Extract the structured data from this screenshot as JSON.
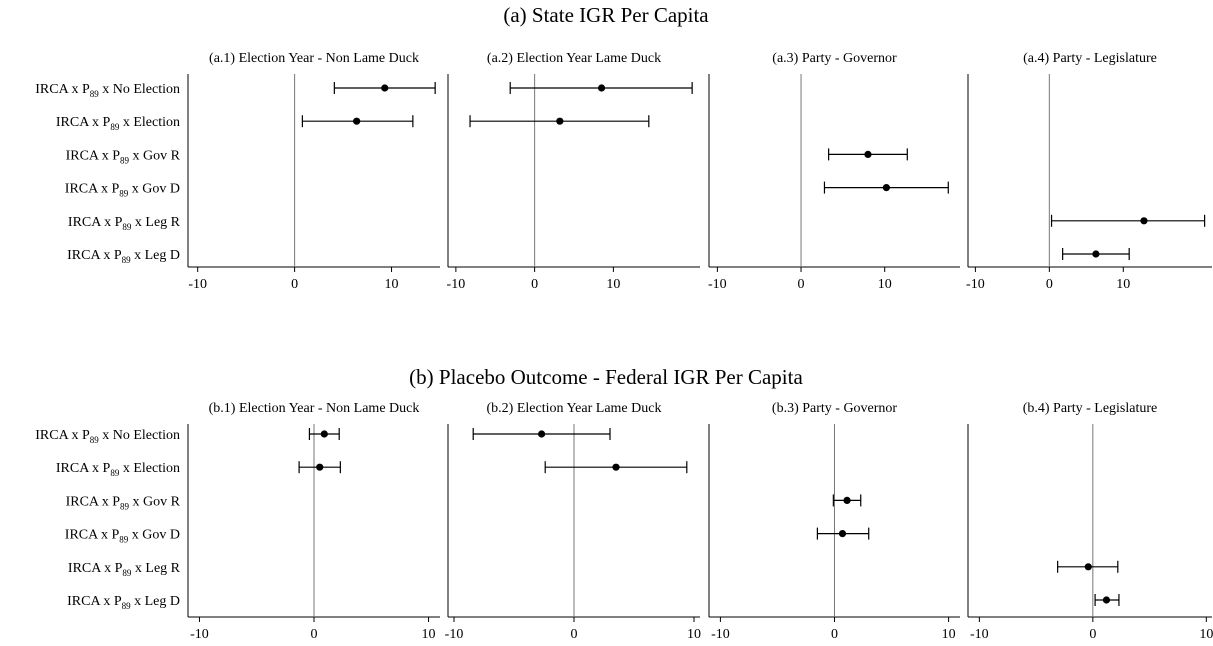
{
  "rows": [
    {
      "title": "(a) State IGR Per Capita",
      "ylabels": [
        {
          "pre": "IRCA x P",
          "sub": "89",
          "post": " x No Election"
        },
        {
          "pre": "IRCA x P",
          "sub": "89",
          "post": " x Election"
        },
        {
          "pre": "IRCA x P",
          "sub": "89",
          "post": " x Gov R"
        },
        {
          "pre": "IRCA x P",
          "sub": "89",
          "post": " x Gov D"
        },
        {
          "pre": "IRCA x P",
          "sub": "89",
          "post": " x Leg R"
        },
        {
          "pre": "IRCA x P",
          "sub": "89",
          "post": " x Leg D"
        }
      ]
    },
    {
      "title": "(b) Placebo Outcome - Federal IGR Per Capita",
      "ylabels": [
        {
          "pre": "IRCA x P",
          "sub": "89",
          "post": " x No Election"
        },
        {
          "pre": "IRCA x P",
          "sub": "89",
          "post": " x Election"
        },
        {
          "pre": "IRCA x P",
          "sub": "89",
          "post": " x Gov R"
        },
        {
          "pre": "IRCA x P",
          "sub": "89",
          "post": " x Gov D"
        },
        {
          "pre": "IRCA x P",
          "sub": "89",
          "post": " x Leg R"
        },
        {
          "pre": "IRCA x P",
          "sub": "89",
          "post": " x Leg D"
        }
      ]
    }
  ],
  "chart_data": [
    {
      "type": "scatter",
      "title": "(a.1) Election Year - Non Lame Duck",
      "row": 0,
      "xlim": [
        -11,
        15
      ],
      "xticks": [
        -10,
        0,
        10
      ],
      "refline": 0,
      "points": [
        {
          "row_index": 0,
          "estimate": 9.3,
          "ci_low": 4.1,
          "ci_high": 14.5
        },
        {
          "row_index": 1,
          "estimate": 6.4,
          "ci_low": 0.8,
          "ci_high": 12.2
        }
      ]
    },
    {
      "type": "scatter",
      "title": "(a.2) Election Year Lame Duck",
      "row": 0,
      "xlim": [
        -11,
        21
      ],
      "xticks": [
        -10,
        0,
        10
      ],
      "refline": 0,
      "points": [
        {
          "row_index": 0,
          "estimate": 8.5,
          "ci_low": -3.1,
          "ci_high": 20.0
        },
        {
          "row_index": 1,
          "estimate": 3.2,
          "ci_low": -8.2,
          "ci_high": 14.5
        }
      ]
    },
    {
      "type": "scatter",
      "title": "(a.3) Party - Governor",
      "row": 0,
      "xlim": [
        -11,
        19
      ],
      "xticks": [
        -10,
        0,
        10
      ],
      "refline": 0,
      "points": [
        {
          "row_index": 2,
          "estimate": 8.0,
          "ci_low": 3.3,
          "ci_high": 12.7
        },
        {
          "row_index": 3,
          "estimate": 10.2,
          "ci_low": 2.8,
          "ci_high": 17.6
        }
      ]
    },
    {
      "type": "scatter",
      "title": "(a.4) Party - Legislature",
      "row": 0,
      "xlim": [
        -11,
        22
      ],
      "xticks": [
        -10,
        0,
        10
      ],
      "refline": 0,
      "points": [
        {
          "row_index": 4,
          "estimate": 12.8,
          "ci_low": 0.3,
          "ci_high": 21.0
        },
        {
          "row_index": 5,
          "estimate": 6.3,
          "ci_low": 1.8,
          "ci_high": 10.8
        }
      ]
    },
    {
      "type": "scatter",
      "title": "(b.1) Election Year - Non Lame Duck",
      "row": 1,
      "xlim": [
        -11,
        11
      ],
      "xticks": [
        -10,
        0,
        10
      ],
      "refline": 0,
      "points": [
        {
          "row_index": 0,
          "estimate": 0.9,
          "ci_low": -0.4,
          "ci_high": 2.2
        },
        {
          "row_index": 1,
          "estimate": 0.5,
          "ci_low": -1.3,
          "ci_high": 2.3
        }
      ]
    },
    {
      "type": "scatter",
      "title": "(b.2) Election Year Lame Duck",
      "row": 1,
      "xlim": [
        -10.5,
        10.5
      ],
      "xticks": [
        -10,
        0,
        10
      ],
      "refline": 0,
      "points": [
        {
          "row_index": 0,
          "estimate": -2.7,
          "ci_low": -8.4,
          "ci_high": 3.0
        },
        {
          "row_index": 1,
          "estimate": 3.5,
          "ci_low": -2.4,
          "ci_high": 9.4
        }
      ]
    },
    {
      "type": "scatter",
      "title": "(b.3) Party - Governor",
      "row": 1,
      "xlim": [
        -11,
        11
      ],
      "xticks": [
        -10,
        0,
        10
      ],
      "refline": 0,
      "points": [
        {
          "row_index": 2,
          "estimate": 1.1,
          "ci_low": -0.1,
          "ci_high": 2.3
        },
        {
          "row_index": 3,
          "estimate": 0.7,
          "ci_low": -1.5,
          "ci_high": 3.0
        }
      ]
    },
    {
      "type": "scatter",
      "title": "(b.4) Party - Legislature",
      "row": 1,
      "xlim": [
        -11,
        10.5
      ],
      "xticks": [
        -10,
        0,
        10
      ],
      "refline": 0,
      "points": [
        {
          "row_index": 4,
          "estimate": -0.4,
          "ci_low": -3.1,
          "ci_high": 2.2
        },
        {
          "row_index": 5,
          "estimate": 1.2,
          "ci_low": 0.2,
          "ci_high": 2.3
        }
      ]
    }
  ]
}
